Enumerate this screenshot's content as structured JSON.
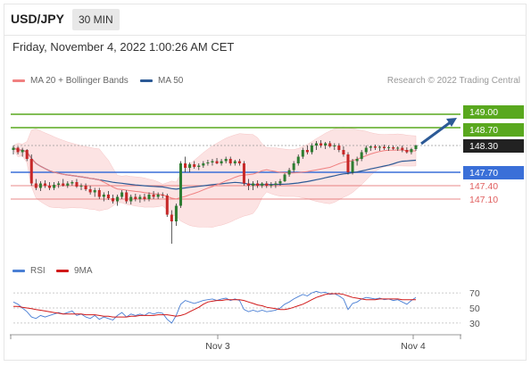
{
  "header": {
    "symbol": "USD/JPY",
    "timeframe": "30 MIN"
  },
  "datetime": "Friday, November 4, 2022 1:00:26 AM CET",
  "legend": {
    "ma20": "MA 20 + Bollinger Bands",
    "ma20_color": "#f08080",
    "ma50": "MA 50",
    "ma50_color": "#2c5a96",
    "credit": "Research © 2022 Trading Central"
  },
  "rsi_legend": {
    "rsi": "RSI",
    "rsi_color": "#4a7fd4",
    "ma9": "9MA",
    "ma9_color": "#d11a1a"
  },
  "colors": {
    "up": "#2e7d32",
    "down": "#c62828",
    "target": "#59a81e",
    "pivot": "#3a6fd8",
    "support": "#e06060",
    "current": "#222222"
  },
  "chart_data": [
    {
      "type": "candlestick",
      "x": [
        "Nov 3",
        "Nov 4"
      ],
      "xlabels": [
        "Nov 3",
        "Nov 4"
      ],
      "ylim": [
        146.0,
        149.4
      ],
      "levels": [
        {
          "label": "149.00",
          "value": 149.0,
          "kind": "target"
        },
        {
          "label": "148.70",
          "value": 148.7,
          "kind": "target"
        },
        {
          "label": "148.30",
          "value": 148.3,
          "kind": "current"
        },
        {
          "label": "147.70",
          "value": 147.7,
          "kind": "pivot"
        },
        {
          "label": "147.40",
          "value": 147.4,
          "kind": "support"
        },
        {
          "label": "147.10",
          "value": 147.1,
          "kind": "support"
        }
      ],
      "series": [
        {
          "name": "MA 20 + Bollinger Bands",
          "type": "line"
        },
        {
          "name": "MA 50",
          "type": "line"
        }
      ],
      "candles": [
        [
          148.2,
          148.3,
          148.1,
          148.25
        ],
        [
          148.25,
          148.28,
          148.1,
          148.15
        ],
        [
          148.15,
          148.25,
          148.05,
          148.2
        ],
        [
          148.2,
          148.22,
          147.95,
          148.0
        ],
        [
          148.0,
          148.1,
          147.4,
          147.45
        ],
        [
          147.45,
          147.55,
          147.3,
          147.35
        ],
        [
          147.35,
          147.5,
          147.28,
          147.45
        ],
        [
          147.45,
          147.52,
          147.35,
          147.4
        ],
        [
          147.4,
          147.48,
          147.3,
          147.35
        ],
        [
          147.35,
          147.48,
          147.3,
          147.42
        ],
        [
          147.42,
          147.5,
          147.35,
          147.45
        ],
        [
          147.45,
          147.55,
          147.38,
          147.4
        ],
        [
          147.4,
          147.5,
          147.35,
          147.45
        ],
        [
          147.45,
          147.52,
          147.4,
          147.48
        ],
        [
          147.48,
          147.55,
          147.35,
          147.38
        ],
        [
          147.38,
          147.45,
          147.3,
          147.4
        ],
        [
          147.4,
          147.45,
          147.28,
          147.32
        ],
        [
          147.32,
          147.4,
          147.2,
          147.25
        ],
        [
          147.25,
          147.35,
          147.15,
          147.3
        ],
        [
          147.3,
          147.35,
          147.1,
          147.15
        ],
        [
          147.15,
          147.25,
          147.05,
          147.2
        ],
        [
          147.2,
          147.28,
          147.08,
          147.12
        ],
        [
          147.12,
          147.2,
          147.0,
          147.05
        ],
        [
          147.05,
          147.2,
          146.95,
          147.15
        ],
        [
          147.15,
          147.3,
          147.1,
          147.25
        ],
        [
          147.25,
          147.3,
          147.0,
          147.05
        ],
        [
          147.05,
          147.2,
          146.98,
          147.15
        ],
        [
          147.15,
          147.22,
          147.05,
          147.1
        ],
        [
          147.1,
          147.2,
          147.02,
          147.15
        ],
        [
          147.15,
          147.22,
          147.05,
          147.1
        ],
        [
          147.1,
          147.25,
          147.05,
          147.2
        ],
        [
          147.2,
          147.28,
          147.1,
          147.15
        ],
        [
          147.15,
          147.25,
          147.1,
          147.2
        ],
        [
          147.2,
          147.25,
          147.12,
          147.18
        ],
        [
          147.18,
          147.22,
          146.7,
          146.75
        ],
        [
          146.75,
          146.85,
          146.1,
          146.6
        ],
        [
          146.6,
          147.0,
          146.5,
          146.95
        ],
        [
          146.95,
          147.95,
          146.9,
          147.9
        ],
        [
          147.9,
          148.05,
          147.7,
          147.8
        ],
        [
          147.8,
          147.92,
          147.7,
          147.88
        ],
        [
          147.88,
          147.95,
          147.78,
          147.82
        ],
        [
          147.82,
          147.9,
          147.75,
          147.85
        ],
        [
          147.85,
          147.95,
          147.8,
          147.9
        ],
        [
          147.9,
          147.98,
          147.85,
          147.92
        ],
        [
          147.92,
          148.0,
          147.85,
          147.95
        ],
        [
          147.95,
          148.02,
          147.88,
          147.9
        ],
        [
          147.9,
          148.0,
          147.85,
          147.95
        ],
        [
          147.95,
          148.05,
          147.9,
          148.0
        ],
        [
          148.0,
          148.05,
          147.85,
          147.9
        ],
        [
          147.9,
          147.98,
          147.85,
          147.95
        ],
        [
          147.95,
          148.0,
          147.85,
          147.9
        ],
        [
          147.9,
          147.95,
          147.4,
          147.45
        ],
        [
          147.45,
          147.55,
          147.3,
          147.4
        ],
        [
          147.4,
          147.5,
          147.3,
          147.45
        ],
        [
          147.45,
          147.52,
          147.35,
          147.4
        ],
        [
          147.4,
          147.48,
          147.35,
          147.45
        ],
        [
          147.45,
          147.5,
          147.35,
          147.4
        ],
        [
          147.4,
          147.48,
          147.35,
          147.42
        ],
        [
          147.42,
          147.5,
          147.35,
          147.45
        ],
        [
          147.45,
          147.55,
          147.4,
          147.5
        ],
        [
          147.5,
          147.68,
          147.48,
          147.65
        ],
        [
          147.65,
          147.8,
          147.6,
          147.75
        ],
        [
          147.75,
          147.95,
          147.7,
          147.9
        ],
        [
          147.9,
          148.1,
          147.85,
          148.05
        ],
        [
          148.05,
          148.25,
          148.0,
          148.2
        ],
        [
          148.2,
          148.3,
          148.1,
          148.15
        ],
        [
          148.15,
          148.35,
          148.1,
          148.3
        ],
        [
          148.3,
          148.4,
          148.2,
          148.35
        ],
        [
          148.35,
          148.42,
          148.25,
          148.3
        ],
        [
          148.3,
          148.38,
          148.22,
          148.35
        ],
        [
          148.35,
          148.4,
          148.25,
          148.28
        ],
        [
          148.28,
          148.35,
          148.2,
          148.3
        ],
        [
          148.3,
          148.35,
          148.15,
          148.2
        ],
        [
          148.2,
          148.28,
          148.05,
          148.1
        ],
        [
          148.1,
          148.15,
          147.65,
          147.7
        ],
        [
          147.7,
          148.0,
          147.65,
          147.95
        ],
        [
          147.95,
          148.05,
          147.85,
          148.0
        ],
        [
          148.0,
          148.2,
          147.95,
          148.15
        ],
        [
          148.15,
          148.3,
          148.1,
          148.25
        ],
        [
          148.25,
          148.3,
          148.18,
          148.28
        ],
        [
          148.28,
          148.32,
          148.2,
          148.25
        ],
        [
          148.25,
          148.3,
          148.18,
          148.27
        ],
        [
          148.27,
          148.32,
          148.2,
          148.24
        ],
        [
          148.24,
          148.3,
          148.18,
          148.26
        ],
        [
          148.26,
          148.3,
          148.2,
          148.23
        ],
        [
          148.23,
          148.28,
          148.18,
          148.25
        ],
        [
          148.25,
          148.3,
          148.15,
          148.2
        ],
        [
          148.2,
          148.26,
          148.12,
          148.15
        ],
        [
          148.15,
          148.25,
          148.1,
          148.22
        ],
        [
          148.22,
          148.32,
          148.18,
          148.3
        ]
      ]
    },
    {
      "type": "line",
      "title": "RSI",
      "y_ticks": [
        70,
        50,
        30
      ],
      "ylim": [
        18,
        82
      ],
      "series": [
        {
          "name": "RSI",
          "values": [
            58,
            55,
            50,
            45,
            38,
            36,
            40,
            38,
            40,
            42,
            44,
            42,
            44,
            46,
            40,
            42,
            38,
            36,
            40,
            35,
            38,
            36,
            34,
            40,
            44,
            38,
            42,
            40,
            42,
            40,
            44,
            42,
            44,
            43,
            35,
            30,
            40,
            55,
            60,
            58,
            56,
            58,
            60,
            61,
            62,
            60,
            62,
            63,
            60,
            62,
            60,
            48,
            45,
            47,
            45,
            47,
            45,
            46,
            47,
            50,
            55,
            58,
            62,
            65,
            68,
            66,
            70,
            72,
            70,
            71,
            68,
            69,
            66,
            62,
            48,
            56,
            58,
            62,
            64,
            63,
            62,
            63,
            61,
            62,
            60,
            61,
            58,
            55,
            60,
            64
          ]
        },
        {
          "name": "9MA",
          "values": [
            52,
            52,
            51,
            50,
            49,
            48,
            47,
            46,
            45,
            44,
            43,
            42,
            42,
            42,
            42,
            42,
            41,
            41,
            41,
            40,
            39,
            39,
            38,
            38,
            38,
            38,
            39,
            39,
            40,
            40,
            40,
            40,
            41,
            41,
            41,
            40,
            39,
            40,
            42,
            45,
            48,
            51,
            55,
            58,
            59,
            60,
            60,
            61,
            61,
            61,
            61,
            60,
            58,
            56,
            54,
            53,
            51,
            50,
            49,
            48,
            48,
            49,
            51,
            53,
            55,
            58,
            61,
            64,
            66,
            68,
            69,
            69,
            69,
            68,
            66,
            64,
            63,
            62,
            61,
            61,
            61,
            62,
            62,
            62,
            62,
            62,
            61,
            61,
            61,
            61
          ]
        }
      ]
    }
  ]
}
